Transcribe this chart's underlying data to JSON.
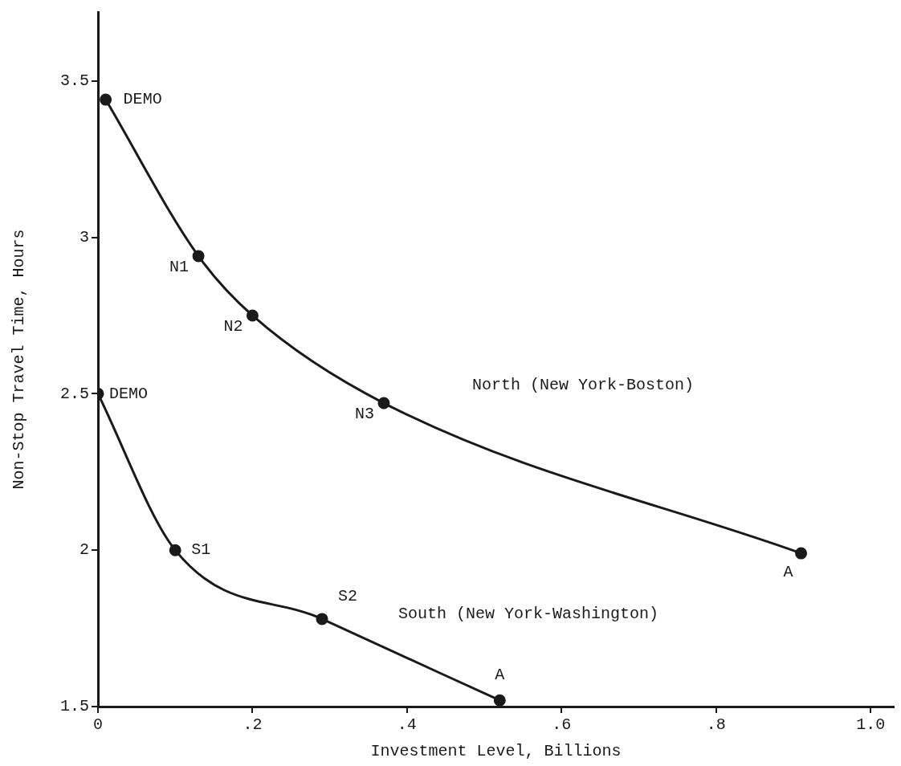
{
  "chart_data": {
    "type": "line",
    "xlabel": "Investment Level, Billions",
    "ylabel": "Non-Stop Travel Time, Hours",
    "xlim": [
      0,
      1.03
    ],
    "ylim": [
      1.5,
      3.72
    ],
    "xticks": [
      0,
      {
        "value": 0.2,
        "label": ".2"
      },
      {
        "value": 0.4,
        "label": ".4"
      },
      {
        "value": 0.6,
        "label": ".6"
      },
      {
        "value": 0.8,
        "label": ".8"
      },
      {
        "value": 1.0,
        "label": "1.0"
      }
    ],
    "yticks": [
      1.5,
      2,
      2.5,
      3,
      3.5
    ],
    "series": [
      {
        "name": "North (New York-Boston)",
        "color": "#1a1a1a",
        "x": [
          0.01,
          0.13,
          0.2,
          0.37,
          0.91
        ],
        "values": [
          3.44,
          2.94,
          2.75,
          2.47,
          1.99
        ]
      },
      {
        "name": "South (New York-Washington)",
        "color": "#1a1a1a",
        "x": [
          0.0,
          0.1,
          0.29,
          0.52
        ],
        "values": [
          2.5,
          2.0,
          1.78,
          1.52
        ]
      }
    ],
    "annotations": [
      {
        "text": "DEMO",
        "x": 0.01,
        "y": 3.44
      },
      {
        "text": "N1",
        "x": 0.13,
        "y": 2.94
      },
      {
        "text": "N2",
        "x": 0.2,
        "y": 2.75
      },
      {
        "text": "N3",
        "x": 0.37,
        "y": 2.47
      },
      {
        "text": "A",
        "x": 0.91,
        "y": 1.99
      },
      {
        "text": "DEMO",
        "x": 0.0,
        "y": 2.5
      },
      {
        "text": "S1",
        "x": 0.1,
        "y": 2.0
      },
      {
        "text": "S2",
        "x": 0.29,
        "y": 1.78
      },
      {
        "text": "A",
        "x": 0.52,
        "y": 1.52
      }
    ],
    "marker": "circle",
    "line_style": "solid",
    "grid": false,
    "legend": false
  }
}
